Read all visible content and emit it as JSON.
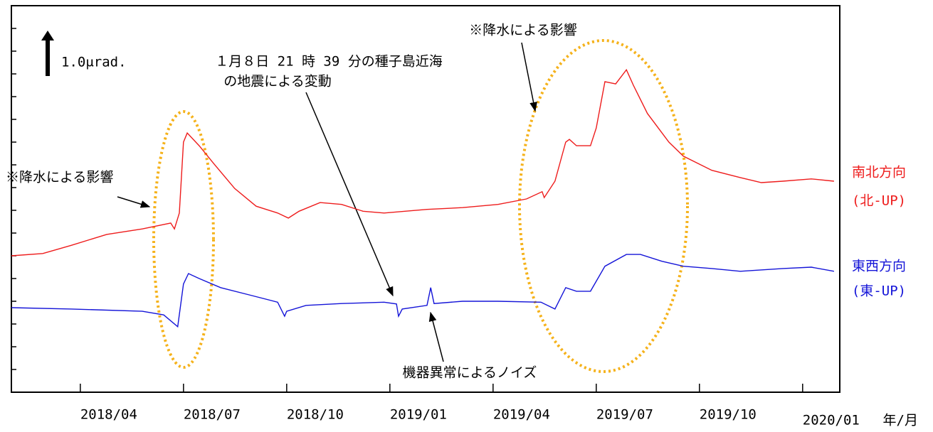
{
  "chart_data": {
    "type": "line",
    "x_label": "年/月",
    "xlim": [
      2018.083,
      2020.09
    ],
    "xticks": [
      {
        "value": 2018.25,
        "label": "2018/04"
      },
      {
        "value": 2018.5,
        "label": "2018/07"
      },
      {
        "value": 2018.75,
        "label": "2018/10"
      },
      {
        "value": 2019.0,
        "label": "2019/01"
      },
      {
        "value": 2019.25,
        "label": "2019/04"
      },
      {
        "value": 2019.5,
        "label": "2019/07"
      },
      {
        "value": 2019.75,
        "label": "2019/10"
      },
      {
        "value": 2020.0,
        "label": "2020/01"
      }
    ],
    "ylim": [
      0,
      8.5
    ],
    "yticks": [
      0,
      0.5,
      1,
      1.5,
      2,
      2.5,
      3,
      3.5,
      4,
      4.5,
      5,
      5.5,
      6,
      6.5,
      7,
      7.5,
      8,
      8.5
    ],
    "scale_bar": {
      "value": 1.0,
      "label": "1.0μrad."
    },
    "series": [
      {
        "name": "南北方向",
        "sublabel": "(北-UP)",
        "color": "#ee1c1c",
        "x": [
          2018.083,
          2018.159,
          2018.228,
          2018.314,
          2018.4,
          2018.469,
          2018.478,
          2018.49,
          2018.5,
          2018.509,
          2018.538,
          2018.573,
          2018.624,
          2018.676,
          2018.728,
          2018.754,
          2018.78,
          2018.831,
          2018.883,
          2018.935,
          2018.986,
          2019.09,
          2019.176,
          2019.262,
          2019.331,
          2019.369,
          2019.374,
          2019.4,
          2019.426,
          2019.435,
          2019.452,
          2019.486,
          2019.5,
          2019.521,
          2019.547,
          2019.573,
          2019.59,
          2019.624,
          2019.676,
          2019.711,
          2019.78,
          2019.849,
          2019.9,
          2019.952,
          2020.021,
          2020.076
        ],
        "values": [
          3.0,
          3.05,
          3.23,
          3.47,
          3.59,
          3.72,
          3.59,
          3.94,
          5.5,
          5.7,
          5.42,
          5.03,
          4.48,
          4.09,
          3.94,
          3.83,
          3.98,
          4.17,
          4.13,
          3.98,
          3.94,
          4.02,
          4.06,
          4.13,
          4.25,
          4.41,
          4.28,
          4.64,
          5.5,
          5.56,
          5.42,
          5.42,
          5.81,
          6.83,
          6.78,
          7.09,
          6.75,
          6.13,
          5.5,
          5.19,
          4.88,
          4.72,
          4.61,
          4.64,
          4.69,
          4.64
        ]
      },
      {
        "name": "東西方向",
        "sublabel": "(東-UP)",
        "color": "#1414d8",
        "x": [
          2018.083,
          2018.228,
          2018.4,
          2018.452,
          2018.486,
          2018.5,
          2018.512,
          2018.538,
          2018.59,
          2018.659,
          2018.728,
          2018.745,
          2018.75,
          2018.797,
          2018.883,
          2018.986,
          2019.016,
          2019.021,
          2019.03,
          2019.09,
          2019.099,
          2019.107,
          2019.176,
          2019.262,
          2019.366,
          2019.4,
          2019.426,
          2019.452,
          2019.486,
          2019.521,
          2019.573,
          2019.607,
          2019.659,
          2019.711,
          2019.78,
          2019.849,
          2019.952,
          2020.021,
          2020.076
        ],
        "values": [
          1.86,
          1.83,
          1.78,
          1.7,
          1.44,
          2.38,
          2.61,
          2.5,
          2.3,
          2.14,
          1.98,
          1.67,
          1.78,
          1.91,
          1.95,
          1.98,
          1.94,
          1.67,
          1.83,
          1.91,
          2.3,
          1.95,
          2.0,
          2.0,
          1.98,
          1.83,
          2.3,
          2.22,
          2.22,
          2.77,
          3.03,
          3.03,
          2.88,
          2.77,
          2.72,
          2.66,
          2.72,
          2.75,
          2.66
        ]
      }
    ],
    "annotations": {
      "rain_left": "※降水による影響",
      "rain_right": "※降水による影響",
      "earthquake": [
        "１月８日 21 時 39 分の種子島近海",
        "の地震による変動"
      ],
      "noise": "機器異常によるノイズ"
    }
  }
}
